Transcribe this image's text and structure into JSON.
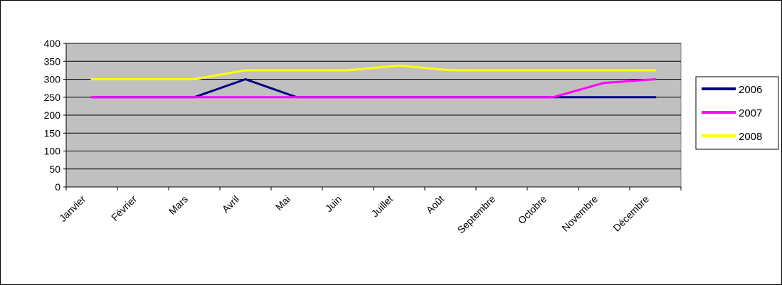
{
  "chart_data": {
    "type": "line",
    "title": "",
    "xlabel": "",
    "ylabel": "",
    "ylim": [
      0,
      400
    ],
    "yticks": [
      0,
      50,
      100,
      150,
      200,
      250,
      300,
      350,
      400
    ],
    "grid": true,
    "legend_position": "right",
    "categories": [
      "Janvier",
      "Février",
      "Mars",
      "Avril",
      "Mai",
      "Juin",
      "Juillet",
      "Août",
      "Septembre",
      "Octobre",
      "Novembre",
      "Décembre"
    ],
    "series": [
      {
        "name": "2006",
        "color": "#000080",
        "values": [
          250,
          250,
          250,
          300,
          250,
          250,
          250,
          250,
          250,
          250,
          250,
          250
        ]
      },
      {
        "name": "2007",
        "color": "#ff00ff",
        "values": [
          250,
          250,
          250,
          250,
          250,
          250,
          250,
          250,
          250,
          250,
          290,
          300
        ]
      },
      {
        "name": "2008",
        "color": "#ffff00",
        "values": [
          300,
          300,
          300,
          325,
          325,
          325,
          338,
          325,
          325,
          325,
          325,
          325
        ]
      }
    ],
    "plot_background": "#c0c0c0"
  }
}
